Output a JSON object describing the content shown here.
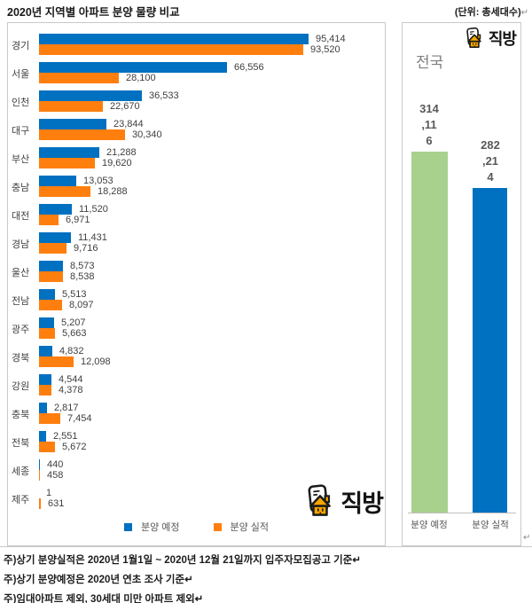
{
  "header": {
    "title": "2020년 지역별 아파트 분양 물량 비교",
    "unit_label": "(단위: 총세대수)",
    "return_mark": "↵"
  },
  "brand": {
    "logo_text": "직방"
  },
  "legend": {
    "expected": "분양 예정",
    "actual": "분양 실적"
  },
  "colors": {
    "expected_blue": "#0070C0",
    "actual_orange": "#FF7F0E",
    "national_expected_green": "#A9D18E",
    "national_actual_blue": "#0070C0",
    "value_label_gray": "#3F3F3F",
    "muted_gray": "#595959",
    "border_gray": "#C9C9C9"
  },
  "national": {
    "region_label": "전국"
  },
  "chart_data": [
    {
      "type": "bar",
      "orientation": "horizontal",
      "title": "2020년 지역별 아파트 분양 물량 비교",
      "unit": "총세대수",
      "categories": [
        "경기",
        "서울",
        "인천",
        "대구",
        "부산",
        "충남",
        "대전",
        "경남",
        "울산",
        "전남",
        "광주",
        "경북",
        "강원",
        "충북",
        "전북",
        "세종",
        "제주"
      ],
      "series": [
        {
          "name": "분양 예정",
          "color": "#0070C0",
          "values": [
            95414,
            66556,
            36533,
            23844,
            21288,
            13053,
            11520,
            11431,
            8573,
            5513,
            5207,
            4832,
            4544,
            2817,
            2551,
            440,
            1
          ]
        },
        {
          "name": "분양 실적",
          "color": "#FF7F0E",
          "values": [
            93520,
            28100,
            22670,
            30340,
            19620,
            18288,
            6971,
            9716,
            8538,
            8097,
            5663,
            12098,
            4378,
            7454,
            5672,
            458,
            631
          ]
        }
      ],
      "xlim": [
        0,
        100000
      ],
      "value_labels": true,
      "grid": false,
      "legend_position": "bottom"
    },
    {
      "type": "bar",
      "orientation": "vertical",
      "title": "전국",
      "categories": [
        "분양 예정",
        "분양 실적"
      ],
      "values": [
        314116,
        282214
      ],
      "value_label_lines": [
        [
          "314",
          ",11",
          "6"
        ],
        [
          "282",
          ",21",
          "4"
        ]
      ],
      "colors": [
        "#A9D18E",
        "#0070C0"
      ],
      "grid": false
    }
  ],
  "notes": [
    "주)상기 분양실적은 2020년 1월1일 ~ 2020년 12월 21일까지 입주자모집공고 기준↵",
    "주)상기 분양예정은 2020년 연초 조사 기준↵",
    "주)임대아파트 제외, 30세대 미만 아파트 제외↵"
  ]
}
